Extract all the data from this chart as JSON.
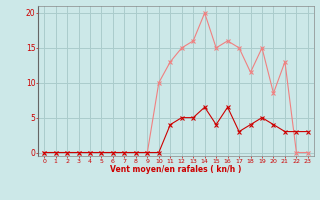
{
  "x": [
    0,
    1,
    2,
    3,
    4,
    5,
    6,
    7,
    8,
    9,
    10,
    11,
    12,
    13,
    14,
    15,
    16,
    17,
    18,
    19,
    20,
    21,
    22,
    23
  ],
  "rafales": [
    0,
    0,
    0,
    0,
    0,
    0,
    0,
    0,
    0,
    0,
    10,
    13,
    15,
    16,
    20,
    15,
    16,
    15,
    11.5,
    15,
    8.5,
    13,
    0,
    0
  ],
  "moyen": [
    0,
    0,
    0,
    0,
    0,
    0,
    0,
    0,
    0,
    0,
    0,
    4,
    5,
    5,
    6.5,
    4,
    6.5,
    3,
    4,
    5,
    4,
    3,
    3,
    3
  ],
  "bg_color": "#cce8e8",
  "grid_color": "#aacccc",
  "line_color_rafales": "#f08080",
  "line_color_moyen": "#cc0000",
  "marker_color_rafales": "#f08080",
  "marker_color_moyen": "#cc0000",
  "xlabel": "Vent moyen/en rafales ( kn/h )",
  "xlabel_color": "#cc0000",
  "ylabel_ticks": [
    0,
    5,
    10,
    15,
    20
  ],
  "xticks": [
    0,
    1,
    2,
    3,
    4,
    5,
    6,
    7,
    8,
    9,
    10,
    11,
    12,
    13,
    14,
    15,
    16,
    17,
    18,
    19,
    20,
    21,
    22,
    23
  ],
  "ylim": [
    -0.5,
    21
  ],
  "xlim": [
    -0.5,
    23.5
  ],
  "tick_color": "#cc0000",
  "axis_color": "#888888",
  "spine_left_color": "#666666"
}
